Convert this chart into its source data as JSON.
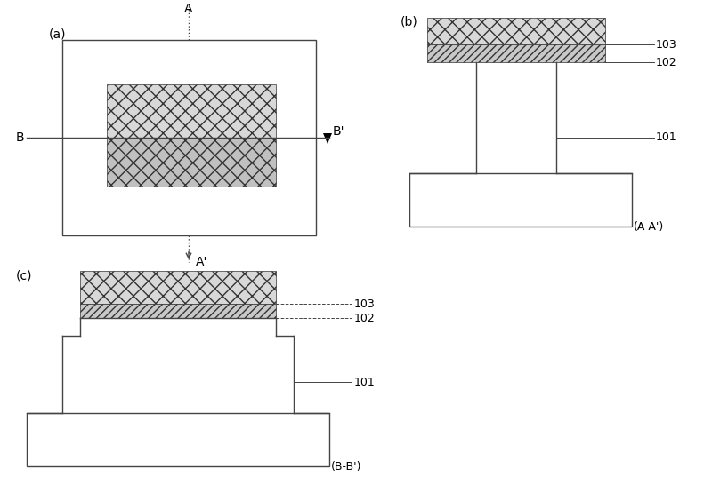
{
  "bg_color": "#ffffff",
  "line_color": "#444444",
  "hatch_cross": "xx",
  "hatch_diag": "////",
  "panel_a_label": "(a)",
  "panel_b_label": "(b)",
  "panel_c_label": "(c)",
  "label_103": "103",
  "label_102": "102",
  "label_101": "101",
  "label_AA": "(A-A')",
  "label_BB": "(B-B')"
}
